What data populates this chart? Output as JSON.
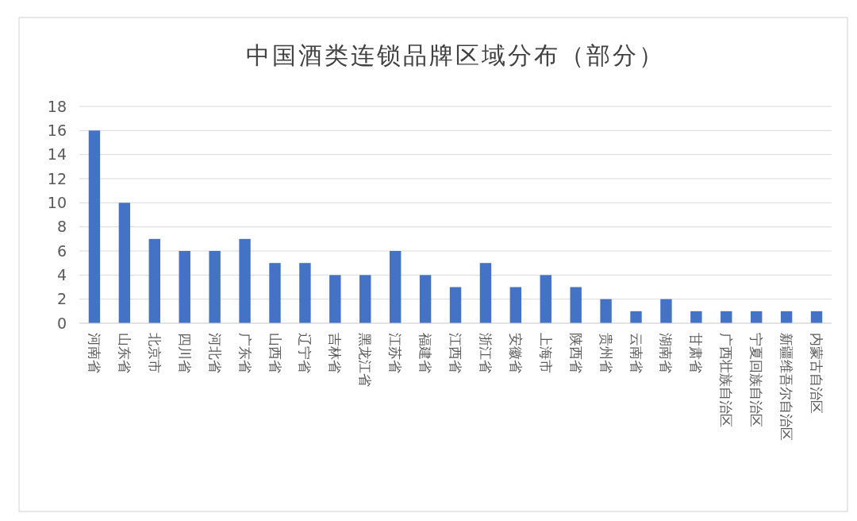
{
  "chart_data": {
    "type": "bar",
    "title": "中国酒类连锁品牌区域分布（部分）",
    "categories": [
      "河南省",
      "山东省",
      "北京市",
      "四川省",
      "河北省",
      "广东省",
      "山西省",
      "辽宁省",
      "吉林省",
      "黑龙江省",
      "江苏省",
      "福建省",
      "江西省",
      "浙江省",
      "安徽省",
      "上海市",
      "陕西省",
      "贵州省",
      "云南省",
      "湖南省",
      "甘肃省",
      "广西壮族自治区",
      "宁夏回族自治区",
      "新疆维吾尔自治区",
      "内蒙古自治区"
    ],
    "values": [
      16,
      10,
      7,
      6,
      6,
      7,
      5,
      5,
      4,
      4,
      6,
      4,
      3,
      5,
      3,
      4,
      3,
      2,
      1,
      2,
      1,
      1,
      1,
      1,
      1
    ],
    "color": "#4472c4",
    "ylim": [
      0,
      18
    ],
    "yticks": [
      0,
      2,
      4,
      6,
      8,
      10,
      12,
      14,
      16,
      18
    ],
    "grid": "y"
  }
}
